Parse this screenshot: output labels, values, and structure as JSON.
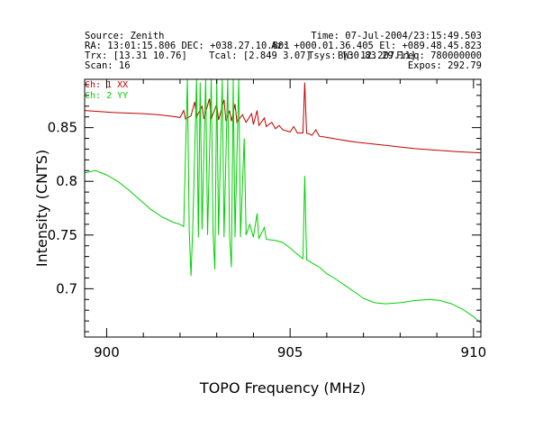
{
  "header": {
    "source": "Source: Zenith",
    "time": "Time: 07-Jul-2004/23:15:49.503",
    "ra_dec": "RA: 13:01:15.806 DEC: +038.27.10.801",
    "az_el": "Az: +000.01.36.405 El: +089.48.45.823",
    "trx": "Trx: [13.31 10.76]",
    "tcal": "Tcal: [2.849 3.07]",
    "tsys": "Tsys: [30.83 29.11]",
    "bandwidth": "BW: 12.207",
    "freq": "Freq: 780000000",
    "scan": "Scan: 16",
    "expos": "Expos: 292.79"
  },
  "chart_data": {
    "type": "line",
    "xlabel": "TOPO Frequency (MHz)",
    "ylabel": "Intensity (CNTS)",
    "xlim": [
      899.4,
      910.2
    ],
    "ylim": [
      0.655,
      0.895
    ],
    "x_ticks": [
      900,
      905,
      910
    ],
    "y_ticks": [
      0.7,
      0.75,
      0.8,
      0.85
    ],
    "grid": false,
    "legend_position": "top-left",
    "series": [
      {
        "name": "Ch: 1 XX",
        "color": "#c00000",
        "points": [
          [
            899.4,
            0.866
          ],
          [
            899.8,
            0.865
          ],
          [
            900.2,
            0.864
          ],
          [
            900.6,
            0.8635
          ],
          [
            901.0,
            0.863
          ],
          [
            901.4,
            0.862
          ],
          [
            901.8,
            0.8605
          ],
          [
            902.0,
            0.8595
          ],
          [
            902.1,
            0.866
          ],
          [
            902.15,
            0.858
          ],
          [
            902.3,
            0.861
          ],
          [
            902.4,
            0.874
          ],
          [
            902.45,
            0.86
          ],
          [
            902.6,
            0.87
          ],
          [
            902.65,
            0.858
          ],
          [
            902.8,
            0.877
          ],
          [
            902.85,
            0.858
          ],
          [
            903.0,
            0.872
          ],
          [
            903.05,
            0.857
          ],
          [
            903.2,
            0.876
          ],
          [
            903.25,
            0.856
          ],
          [
            903.35,
            0.866
          ],
          [
            903.4,
            0.856
          ],
          [
            903.5,
            0.872
          ],
          [
            903.55,
            0.855
          ],
          [
            903.7,
            0.862
          ],
          [
            903.8,
            0.855
          ],
          [
            903.95,
            0.863
          ],
          [
            904.0,
            0.853
          ],
          [
            904.1,
            0.866
          ],
          [
            904.15,
            0.852
          ],
          [
            904.3,
            0.859
          ],
          [
            904.35,
            0.851
          ],
          [
            904.5,
            0.855
          ],
          [
            904.6,
            0.849
          ],
          [
            904.7,
            0.852
          ],
          [
            904.8,
            0.848
          ],
          [
            905.0,
            0.846
          ],
          [
            905.1,
            0.851
          ],
          [
            905.2,
            0.845
          ],
          [
            905.35,
            0.845
          ],
          [
            905.4,
            0.892
          ],
          [
            905.45,
            0.845
          ],
          [
            905.6,
            0.843
          ],
          [
            905.7,
            0.848
          ],
          [
            905.8,
            0.842
          ],
          [
            906.0,
            0.841
          ],
          [
            906.4,
            0.8385
          ],
          [
            906.8,
            0.8365
          ],
          [
            907.2,
            0.835
          ],
          [
            907.6,
            0.8335
          ],
          [
            908.0,
            0.832
          ],
          [
            908.4,
            0.8305
          ],
          [
            908.8,
            0.8295
          ],
          [
            909.2,
            0.8285
          ],
          [
            909.6,
            0.8275
          ],
          [
            910.2,
            0.8265
          ]
        ]
      },
      {
        "name": "Ch: 2 YY",
        "color": "#00d000",
        "points": [
          [
            899.4,
            0.808
          ],
          [
            899.7,
            0.81
          ],
          [
            900.0,
            0.806
          ],
          [
            900.3,
            0.8
          ],
          [
            900.6,
            0.792
          ],
          [
            900.9,
            0.783
          ],
          [
            901.2,
            0.774
          ],
          [
            901.5,
            0.767
          ],
          [
            901.8,
            0.762
          ],
          [
            902.0,
            0.76
          ],
          [
            902.1,
            0.758
          ],
          [
            902.2,
            0.895
          ],
          [
            902.25,
            0.755
          ],
          [
            902.3,
            0.712
          ],
          [
            902.35,
            0.76
          ],
          [
            902.45,
            0.895
          ],
          [
            902.5,
            0.748
          ],
          [
            902.55,
            0.892
          ],
          [
            902.6,
            0.755
          ],
          [
            902.7,
            0.895
          ],
          [
            902.75,
            0.75
          ],
          [
            902.85,
            0.895
          ],
          [
            902.9,
            0.752
          ],
          [
            902.95,
            0.718
          ],
          [
            903.0,
            0.895
          ],
          [
            903.05,
            0.75
          ],
          [
            903.15,
            0.895
          ],
          [
            903.2,
            0.748
          ],
          [
            903.3,
            0.895
          ],
          [
            903.35,
            0.75
          ],
          [
            903.4,
            0.72
          ],
          [
            903.45,
            0.895
          ],
          [
            903.5,
            0.748
          ],
          [
            903.6,
            0.895
          ],
          [
            903.65,
            0.748
          ],
          [
            903.75,
            0.84
          ],
          [
            903.8,
            0.75
          ],
          [
            903.9,
            0.76
          ],
          [
            904.0,
            0.748
          ],
          [
            904.1,
            0.77
          ],
          [
            904.15,
            0.747
          ],
          [
            904.3,
            0.757
          ],
          [
            904.35,
            0.746
          ],
          [
            904.6,
            0.745
          ],
          [
            904.8,
            0.743
          ],
          [
            905.0,
            0.738
          ],
          [
            905.2,
            0.732
          ],
          [
            905.35,
            0.728
          ],
          [
            905.4,
            0.805
          ],
          [
            905.45,
            0.727
          ],
          [
            905.6,
            0.724
          ],
          [
            905.8,
            0.72
          ],
          [
            906.0,
            0.714
          ],
          [
            906.2,
            0.71
          ],
          [
            906.5,
            0.703
          ],
          [
            906.8,
            0.696
          ],
          [
            907.0,
            0.691
          ],
          [
            907.3,
            0.687
          ],
          [
            907.6,
            0.686
          ],
          [
            908.0,
            0.687
          ],
          [
            908.4,
            0.689
          ],
          [
            908.8,
            0.69
          ],
          [
            909.1,
            0.689
          ],
          [
            909.4,
            0.686
          ],
          [
            909.7,
            0.681
          ],
          [
            910.0,
            0.674
          ],
          [
            910.2,
            0.668
          ]
        ]
      }
    ]
  }
}
